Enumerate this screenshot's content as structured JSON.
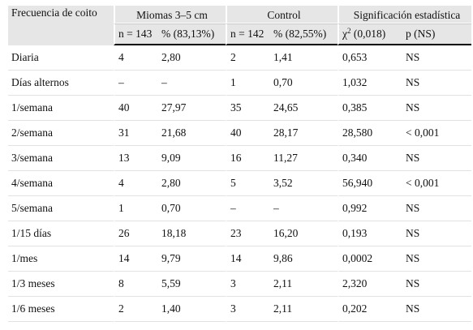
{
  "header": {
    "col_label": "Frecuencia de coito",
    "group_miomas": "Miomas 3–5 cm",
    "group_control": "Control",
    "group_signif": "Significación estadística",
    "miomas_n": "n = 143",
    "miomas_pct": "% (83,13%)",
    "control_n": "n = 142",
    "control_pct": "% (82,55%)",
    "chi_symbol": "χ",
    "chi_exp": "2",
    "chi_value": " (0,018)",
    "p_label": "p (NS)"
  },
  "rows": [
    [
      "Diaria",
      "4",
      "2,80",
      "2",
      "1,41",
      "0,653",
      "NS"
    ],
    [
      "Días alternos",
      "–",
      "–",
      "1",
      "0,70",
      "1,032",
      "NS"
    ],
    [
      "1/semana",
      "40",
      "27,97",
      "35",
      "24,65",
      "0,385",
      "NS"
    ],
    [
      "2/semana",
      "31",
      "21,68",
      "40",
      "28,17",
      "28,580",
      "< 0,001"
    ],
    [
      "3/semana",
      "13",
      "9,09",
      "16",
      "11,27",
      "0,340",
      "NS"
    ],
    [
      "4/semana",
      "4",
      "2,80",
      "5",
      "3,52",
      "56,940",
      "< 0,001"
    ],
    [
      "5/semana",
      "1",
      "0,70",
      "–",
      "–",
      "0,992",
      "NS"
    ],
    [
      "1/15 días",
      "26",
      "18,18",
      "23",
      "16,20",
      "0,193",
      "NS"
    ],
    [
      "1/mes",
      "14",
      "9,79",
      "14",
      "9,86",
      "0,0002",
      "NS"
    ],
    [
      "1/3 meses",
      "8",
      "5,59",
      "3",
      "2,11",
      "2,320",
      "NS"
    ],
    [
      "1/6 meses",
      "2",
      "1,40",
      "3",
      "2,11",
      "0,202",
      "NS"
    ]
  ]
}
